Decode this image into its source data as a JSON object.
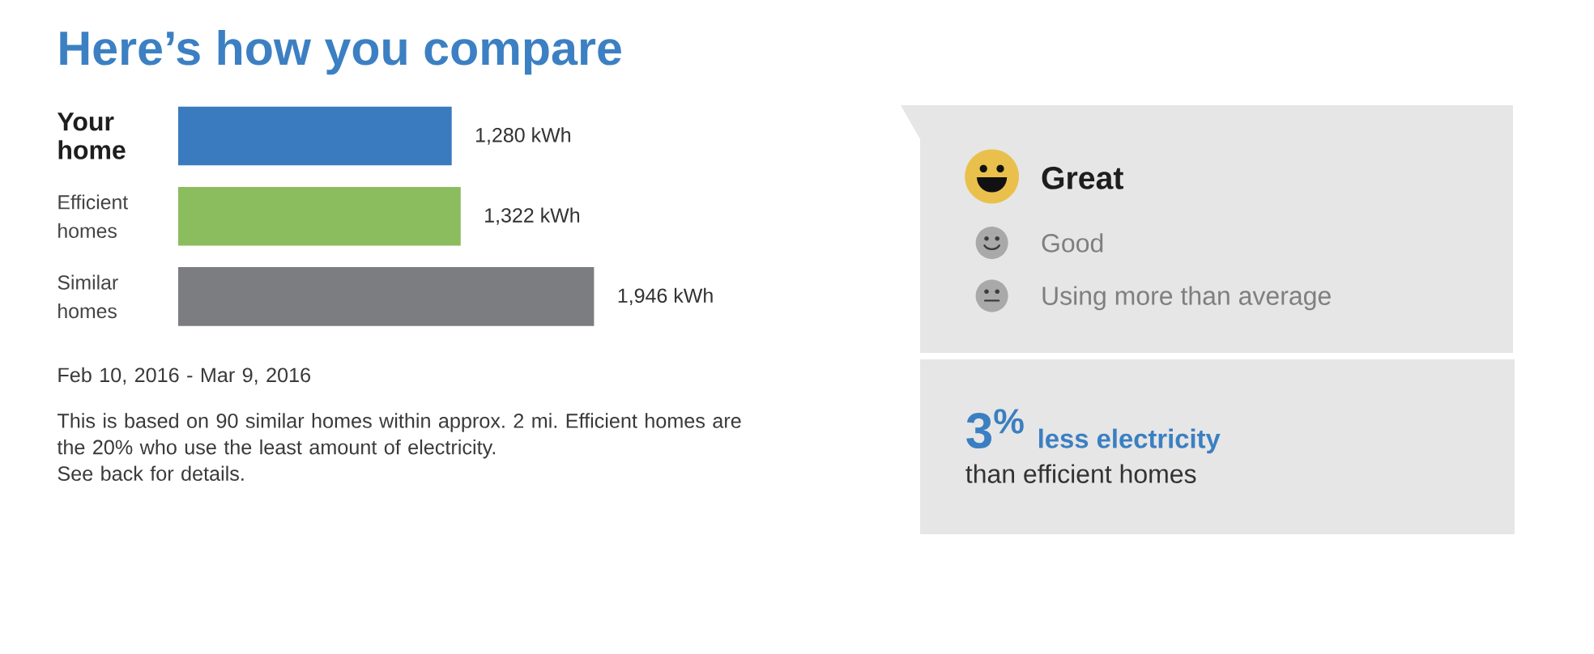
{
  "chart_data": [
    {
      "type": "bar",
      "orientation": "horizontal",
      "title": "Here’s how you compare",
      "categories": [
        "Your home",
        "Efficient homes",
        "Similar homes"
      ],
      "values": [
        1280,
        1322,
        1946
      ],
      "colors": [
        "#3a7bbf",
        "#8bbd5f",
        "#7c7d81"
      ],
      "value_labels": [
        "1,280 kWh",
        "1,322 kWh",
        "1,946 kWh"
      ],
      "tick_labels": "y",
      "annotations": [
        "Feb 10, 2016 - Mar 9, 2016",
        "This is based on 90 similar homes within approx. 2 mi. Efficient homes are the 20% who use the least amount of electricity.",
        "See back for details."
      ]
    },
    {
      "type": "other",
      "annotations": [
        "Great",
        "Good",
        "Using more than average",
        "3$^{%}$",
        "less electricity",
        "than efficient homes"
      ]
    }
  ]
}
